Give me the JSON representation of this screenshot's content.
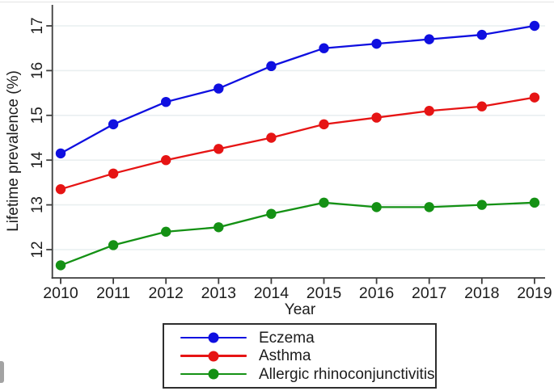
{
  "figure": {
    "xlabel": "Year",
    "ylabel": "Lifetime prevalence (%)"
  },
  "chart_data": {
    "type": "line",
    "title": "",
    "xlabel": "Year",
    "ylabel": "Lifetime prevalence (%)",
    "x": [
      2010,
      2011,
      2012,
      2013,
      2014,
      2015,
      2016,
      2017,
      2018,
      2019
    ],
    "series": [
      {
        "name": "Eczema",
        "color": "#0f0fe0",
        "values": [
          14.15,
          14.8,
          15.3,
          15.6,
          16.1,
          16.5,
          16.6,
          16.7,
          16.8,
          17.0
        ]
      },
      {
        "name": "Asthma",
        "color": "#e61414",
        "values": [
          13.35,
          13.7,
          14.0,
          14.25,
          14.5,
          14.8,
          14.95,
          15.1,
          15.2,
          15.4
        ]
      },
      {
        "name": "Allergic rhinoconjunctivitis",
        "color": "#149114",
        "values": [
          11.65,
          12.1,
          12.4,
          12.5,
          12.8,
          13.05,
          12.95,
          12.95,
          13.0,
          13.05
        ]
      }
    ],
    "yticks": [
      12,
      13,
      14,
      15,
      16,
      17
    ],
    "ylim": [
      11.4,
      17.45
    ],
    "grid": "horizontal",
    "legend_position": "bottom-center"
  },
  "colors": {
    "axis": "#3d3d3d",
    "grid": "#e9eff0",
    "text": "#1c1c1c",
    "legend_border": "#2e2e2e"
  }
}
